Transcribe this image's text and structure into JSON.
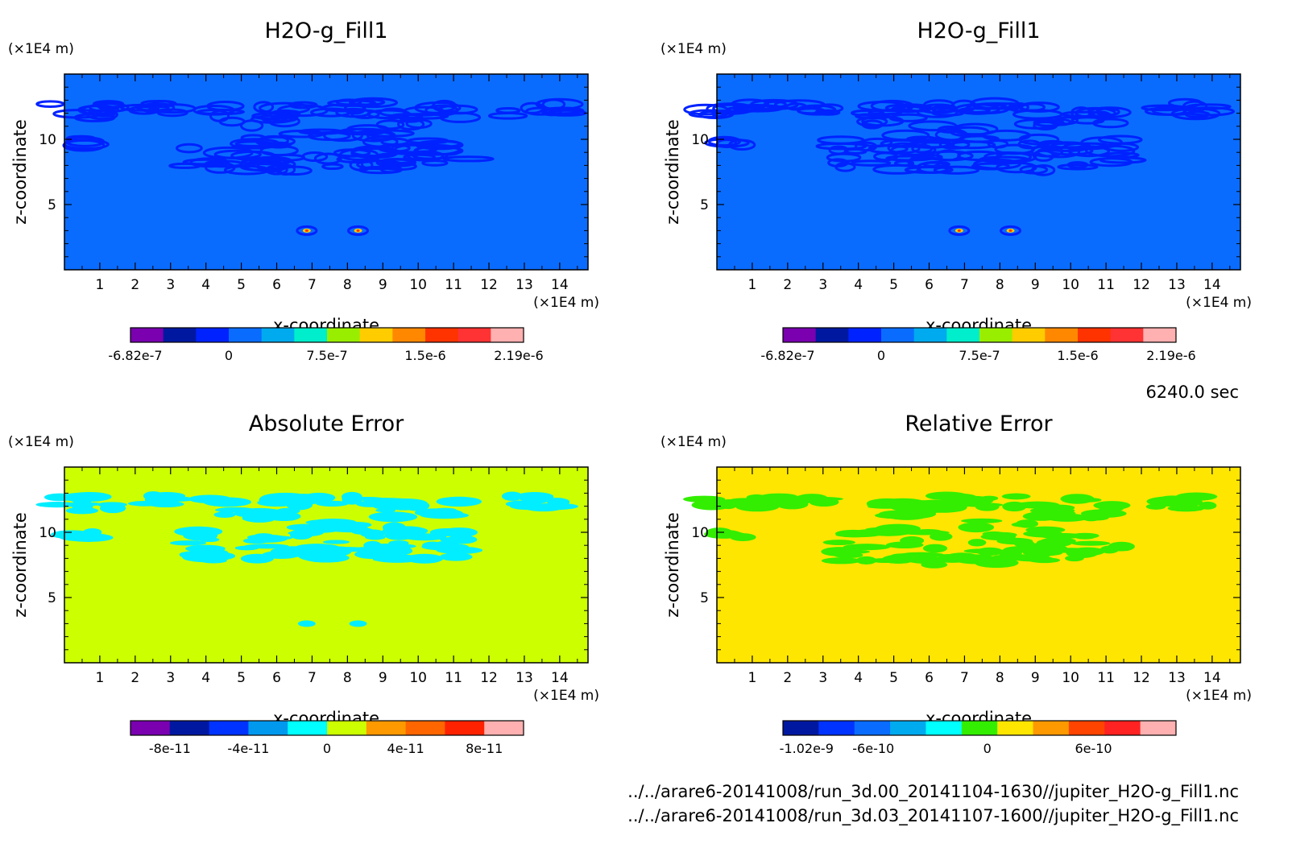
{
  "timestamp": "6240.0 sec",
  "footer": {
    "line1": "../../arare6-20141008/run_3d.00_20141104-1630//jupiter_H2O-g_Fill1.nc",
    "line2": "../../arare6-20141008/run_3d.03_20141107-1600//jupiter_H2O-g_Fill1.nc"
  },
  "chart_data": [
    {
      "type": "heatmap",
      "title": "H2O-g_Fill1",
      "xlabel": "x-coordinate",
      "ylabel": "z-coordinate",
      "xunit": "(×1E4 m)",
      "yunit": "(×1E4 m)",
      "xlim": [
        0,
        14.8
      ],
      "ylim": [
        0,
        15
      ],
      "xticks": [
        "1",
        "2",
        "3",
        "4",
        "5",
        "6",
        "7",
        "8",
        "9",
        "10",
        "11",
        "12",
        "13",
        "14"
      ],
      "yticks": [
        "5",
        "10"
      ],
      "background_level_color": "#0a6cff",
      "colorbar": {
        "colors": [
          "#7a00b0",
          "#0018a0",
          "#0022ff",
          "#0a6cff",
          "#00aaee",
          "#00eecc",
          "#99ee00",
          "#ffcc00",
          "#ff8800",
          "#ff3300",
          "#ff3333",
          "#ffb0b0"
        ],
        "labels": [
          "-6.82e-7",
          "0",
          "7.5e-7",
          "1.5e-6",
          "2.19e-6"
        ]
      }
    },
    {
      "type": "heatmap",
      "title": "H2O-g_Fill1",
      "xlabel": "x-coordinate",
      "ylabel": "z-coordinate",
      "xunit": "(×1E4 m)",
      "yunit": "(×1E4 m)",
      "xlim": [
        0,
        14.8
      ],
      "ylim": [
        0,
        15
      ],
      "xticks": [
        "1",
        "2",
        "3",
        "4",
        "5",
        "6",
        "7",
        "8",
        "9",
        "10",
        "11",
        "12",
        "13",
        "14"
      ],
      "yticks": [
        "5",
        "10"
      ],
      "background_level_color": "#0a6cff",
      "colorbar": {
        "colors": [
          "#7a00b0",
          "#0018a0",
          "#0022ff",
          "#0a6cff",
          "#00aaee",
          "#00eecc",
          "#99ee00",
          "#ffcc00",
          "#ff8800",
          "#ff3300",
          "#ff3333",
          "#ffb0b0"
        ],
        "labels": [
          "-6.82e-7",
          "0",
          "7.5e-7",
          "1.5e-6",
          "2.19e-6"
        ]
      }
    },
    {
      "type": "heatmap",
      "title": "Absolute Error",
      "xlabel": "x-coordinate",
      "ylabel": "z-coordinate",
      "xunit": "(×1E4 m)",
      "yunit": "(×1E4 m)",
      "xlim": [
        0,
        14.8
      ],
      "ylim": [
        0,
        15
      ],
      "xticks": [
        "1",
        "2",
        "3",
        "4",
        "5",
        "6",
        "7",
        "8",
        "9",
        "10",
        "11",
        "12",
        "13",
        "14"
      ],
      "yticks": [
        "5",
        "10"
      ],
      "background_level_color": "#ccff00",
      "colorbar": {
        "colors": [
          "#7a00b0",
          "#0018a0",
          "#0033ff",
          "#0099ee",
          "#00ffff",
          "#ccff00",
          "#ff9900",
          "#ff6600",
          "#ff2200",
          "#ffb0b0"
        ],
        "labels": [
          "-8e-11",
          "-4e-11",
          "0",
          "4e-11",
          "8e-11"
        ]
      }
    },
    {
      "type": "heatmap",
      "title": "Relative Error",
      "xlabel": "x-coordinate",
      "ylabel": "z-coordinate",
      "xunit": "(×1E4 m)",
      "yunit": "(×1E4 m)",
      "xlim": [
        0,
        14.8
      ],
      "ylim": [
        0,
        15
      ],
      "xticks": [
        "1",
        "2",
        "3",
        "4",
        "5",
        "6",
        "7",
        "8",
        "9",
        "10",
        "11",
        "12",
        "13",
        "14"
      ],
      "yticks": [
        "5",
        "10"
      ],
      "background_level_color": "#ffe600",
      "colorbar": {
        "colors": [
          "#0018a0",
          "#0033ff",
          "#0a6cff",
          "#00aaee",
          "#00ffff",
          "#33ee00",
          "#ffe600",
          "#ff9900",
          "#ff4400",
          "#ff2222",
          "#ffb0b0"
        ],
        "labels": [
          "-1.02e-9",
          "-6e-10",
          "0",
          "6e-10"
        ]
      }
    }
  ]
}
